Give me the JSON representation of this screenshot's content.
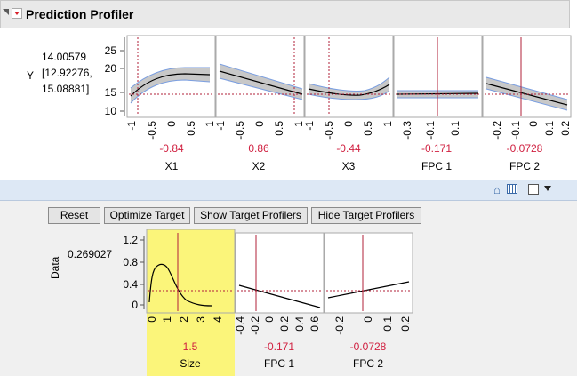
{
  "header": {
    "title": "Prediction Profiler"
  },
  "profiler": {
    "response": {
      "label": "Y",
      "value": "14.00579",
      "ci_lower": "[12.92276,",
      "ci_upper": "15.08881]",
      "yticks": [
        "25",
        "20",
        "15",
        "10"
      ]
    },
    "factors": [
      {
        "name": "X1",
        "current": "-0.84",
        "ticks": [
          "-1",
          "-0.5",
          "0",
          "0.5",
          "1"
        ]
      },
      {
        "name": "X2",
        "current": "0.86",
        "ticks": [
          "-1",
          "-0.5",
          "0",
          "0.5",
          "1"
        ]
      },
      {
        "name": "X3",
        "current": "-0.44",
        "ticks": [
          "-1",
          "-0.5",
          "0",
          "0.5",
          "1"
        ]
      },
      {
        "name": "FPC 1",
        "current": "-0.171",
        "ticks": [
          "-0.3",
          "-0.1",
          "0.1"
        ]
      },
      {
        "name": "FPC 2",
        "current": "-0.0728",
        "ticks": [
          "-0.2",
          "-0.1",
          "0",
          "0.1",
          "0.2"
        ]
      }
    ]
  },
  "toolbar_buttons": {
    "reset": "Reset",
    "optimize_target": "Optimize Target",
    "show_target_profilers": "Show Target Profilers",
    "hide_target_profilers": "Hide Target Profilers"
  },
  "target_profiler": {
    "response": {
      "label": "Data",
      "value": "0.269027",
      "yticks": [
        "1.2",
        "0.8",
        "0.4",
        "0"
      ]
    },
    "factors": [
      {
        "name": "Size",
        "current": "1.5",
        "ticks": [
          "0",
          "1",
          "2",
          "3",
          "4"
        ]
      },
      {
        "name": "FPC 1",
        "current": "-0.171",
        "ticks": [
          "-0.4",
          "-0.2",
          "0",
          "0.2",
          "0.4",
          "0.6"
        ]
      },
      {
        "name": "FPC 2",
        "current": "-0.0728",
        "ticks": [
          "-0.2",
          "0",
          "0.1",
          "0.2"
        ]
      }
    ]
  },
  "icons": {
    "collapse": "disclosure-triangle-icon",
    "menu": "red-triangle-menu-icon",
    "home": "home-icon",
    "grid": "grid-icon",
    "dropdown": "dropdown-arrow-icon"
  },
  "colors": {
    "current_line": "#b0203a",
    "curve": "#000000",
    "ci_band": "#c8c8c8",
    "ci_edge": "#7a9ee0",
    "highlight": "#fbf57a"
  }
}
